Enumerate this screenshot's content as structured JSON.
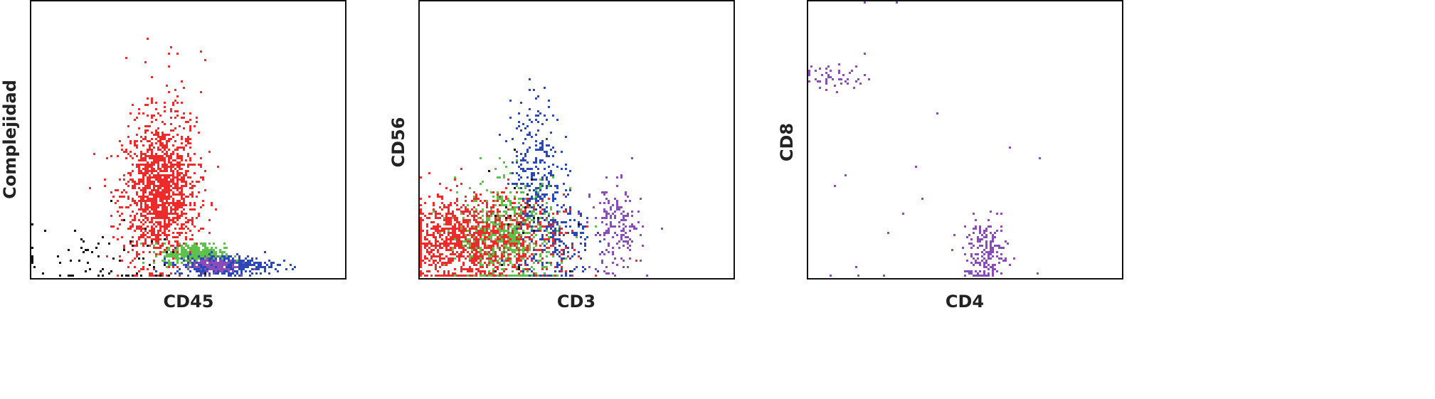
{
  "chart_data": [
    {
      "type": "scatter",
      "xlabel": "CD45",
      "ylabel": "Complejidad",
      "xlim": [
        0,
        100
      ],
      "ylim": [
        0,
        100
      ],
      "grid": false,
      "populations": [
        {
          "color": "#ee2b2b",
          "center": [
            41,
            30
          ],
          "spread": [
            6,
            13
          ],
          "count": 1400
        },
        {
          "color": "#ee2b2b",
          "center": [
            45,
            62
          ],
          "spread": [
            5,
            14
          ],
          "count": 60
        },
        {
          "color": "#5cc24a",
          "center": [
            52,
            8
          ],
          "spread": [
            5,
            2
          ],
          "count": 350
        },
        {
          "color": "#2a48b8",
          "center": [
            62,
            4
          ],
          "spread": [
            8,
            1.8
          ],
          "count": 350
        },
        {
          "color": "#8a4cb8",
          "center": [
            58,
            4
          ],
          "spread": [
            4,
            1.5
          ],
          "count": 120
        },
        {
          "color": "#111111",
          "center": [
            20,
            6
          ],
          "spread": [
            15,
            6
          ],
          "count": 70
        }
      ]
    },
    {
      "type": "scatter",
      "xlabel": "CD3",
      "ylabel": "CD56",
      "xlim": [
        0,
        100
      ],
      "ylim": [
        0,
        100
      ],
      "grid": false,
      "populations": [
        {
          "color": "#2a48b8",
          "center": [
            37,
            40
          ],
          "spread": [
            4,
            13
          ],
          "count": 250
        },
        {
          "color": "#2a48b8",
          "center": [
            43,
            14
          ],
          "spread": [
            6,
            9
          ],
          "count": 250
        },
        {
          "color": "#ee2b2b",
          "center": [
            18,
            13
          ],
          "spread": [
            12,
            8
          ],
          "count": 1500
        },
        {
          "color": "#5cc24a",
          "center": [
            28,
            15
          ],
          "spread": [
            8,
            10
          ],
          "count": 450
        },
        {
          "color": "#8a4cb8",
          "center": [
            63,
            17
          ],
          "spread": [
            4,
            8
          ],
          "count": 180
        },
        {
          "color": "#111111",
          "center": [
            35,
            20
          ],
          "spread": [
            10,
            12
          ],
          "count": 25
        }
      ]
    },
    {
      "type": "scatter",
      "xlabel": "CD4",
      "ylabel": "CD8",
      "xlim": [
        0,
        100
      ],
      "ylim": [
        0,
        100
      ],
      "grid": false,
      "populations": [
        {
          "color": "#8a4cb8",
          "center": [
            8,
            73
          ],
          "spread": [
            5,
            2.5
          ],
          "count": 45
        },
        {
          "color": "#8a4cb8",
          "center": [
            57,
            8
          ],
          "spread": [
            3.5,
            6
          ],
          "count": 200
        },
        {
          "color": "#8a4cb8",
          "center": [
            30,
            40
          ],
          "spread": [
            25,
            25
          ],
          "count": 18
        }
      ]
    }
  ]
}
